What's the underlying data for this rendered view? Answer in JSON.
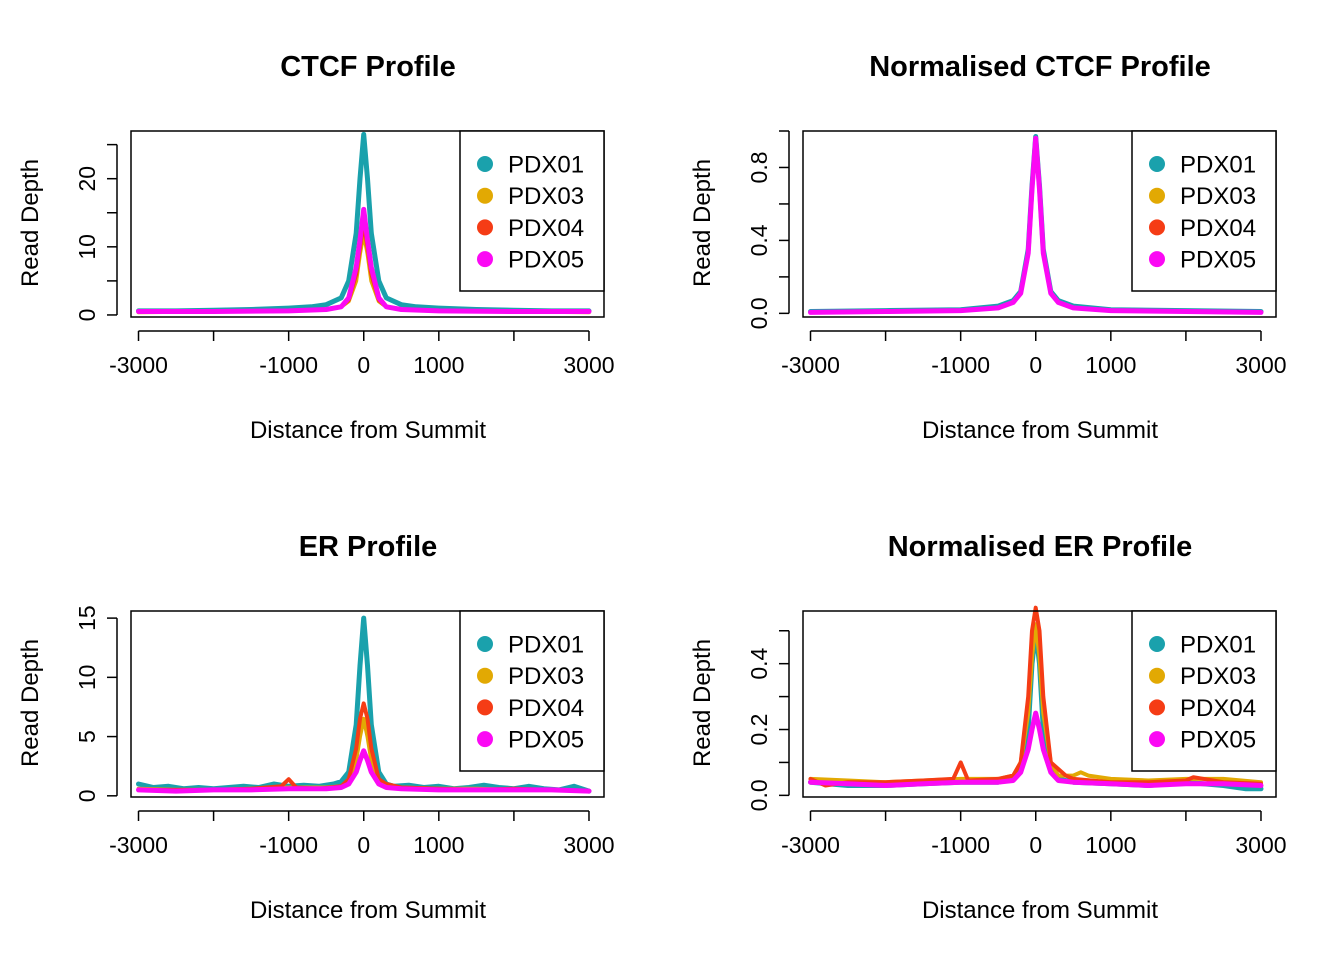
{
  "colors": {
    "PDX01": "#1AA1AC",
    "PDX03": "#E2A903",
    "PDX04": "#F53C15",
    "PDX05": "#FB09F4"
  },
  "chart_data": [
    {
      "type": "line",
      "title": "CTCF Profile",
      "xlabel": "Distance from Summit",
      "ylabel": "Read Depth",
      "xlim": [
        -3100,
        3200
      ],
      "ylim": [
        -0.3,
        27
      ],
      "xticks": [
        -3000,
        -2000,
        -1000,
        0,
        1000,
        2000,
        3000
      ],
      "xtick_labels": [
        "-3000",
        "",
        "-1000",
        "0",
        "1000",
        "",
        "3000"
      ],
      "yticks": [
        0,
        5,
        10,
        15,
        20,
        25
      ],
      "ytick_labels": [
        "0",
        "",
        "10",
        "",
        "20",
        ""
      ],
      "legend": [
        "PDX01",
        "PDX03",
        "PDX04",
        "PDX05"
      ],
      "legend_position": "top-right",
      "series": [
        {
          "name": "PDX01",
          "width": 5,
          "x": [
            -3000,
            -2500,
            -2000,
            -1500,
            -1000,
            -700,
            -500,
            -300,
            -200,
            -100,
            -50,
            0,
            50,
            100,
            200,
            300,
            500,
            700,
            1000,
            1500,
            2000,
            2500,
            3000
          ],
          "y": [
            0.6,
            0.6,
            0.7,
            0.8,
            1.0,
            1.2,
            1.5,
            2.5,
            5,
            12,
            20,
            26.5,
            20,
            12,
            5,
            2.5,
            1.5,
            1.2,
            1.0,
            0.8,
            0.7,
            0.6,
            0.6
          ]
        },
        {
          "name": "PDX03",
          "width": 4,
          "x": [
            -3000,
            -2000,
            -1000,
            -500,
            -300,
            -200,
            -100,
            -50,
            0,
            50,
            100,
            200,
            300,
            500,
            1000,
            2000,
            3000
          ],
          "y": [
            0.4,
            0.5,
            0.6,
            0.8,
            1.2,
            2,
            5,
            9,
            12,
            9,
            5,
            2,
            1.2,
            0.8,
            0.6,
            0.5,
            0.4
          ]
        },
        {
          "name": "PDX04",
          "width": 4,
          "x": [
            -3000,
            -2000,
            -1000,
            -500,
            -300,
            -200,
            -100,
            -50,
            0,
            50,
            100,
            200,
            300,
            500,
            1000,
            2000,
            3000
          ],
          "y": [
            0.5,
            0.5,
            0.6,
            0.8,
            1.2,
            2.2,
            6,
            10,
            13.5,
            10,
            6,
            2.2,
            1.2,
            0.8,
            0.6,
            0.5,
            0.5
          ]
        },
        {
          "name": "PDX05",
          "width": 5,
          "x": [
            -3000,
            -2000,
            -1000,
            -500,
            -300,
            -200,
            -100,
            -50,
            0,
            50,
            100,
            200,
            300,
            500,
            1000,
            2000,
            3000
          ],
          "y": [
            0.5,
            0.5,
            0.6,
            0.8,
            1.2,
            2.5,
            7,
            11,
            15.5,
            11,
            7,
            2.5,
            1.2,
            0.8,
            0.6,
            0.5,
            0.5
          ]
        }
      ]
    },
    {
      "type": "line",
      "title": "Normalised CTCF Profile",
      "xlabel": "Distance from Summit",
      "ylabel": "Read Depth",
      "xlim": [
        -3100,
        3200
      ],
      "ylim": [
        -0.02,
        1.0
      ],
      "xticks": [
        -3000,
        -2000,
        -1000,
        0,
        1000,
        2000,
        3000
      ],
      "xtick_labels": [
        "-3000",
        "",
        "-1000",
        "0",
        "1000",
        "",
        "3000"
      ],
      "yticks": [
        0,
        0.2,
        0.4,
        0.6,
        0.8,
        1.0
      ],
      "ytick_labels": [
        "0.0",
        "",
        "0.4",
        "",
        "0.8",
        ""
      ],
      "legend": [
        "PDX01",
        "PDX03",
        "PDX04",
        "PDX05"
      ],
      "legend_position": "top-right",
      "series": [
        {
          "name": "PDX01",
          "width": 5,
          "x": [
            -3000,
            -2000,
            -1000,
            -500,
            -300,
            -200,
            -100,
            -50,
            0,
            50,
            100,
            200,
            300,
            500,
            1000,
            2000,
            3000
          ],
          "y": [
            0.01,
            0.015,
            0.02,
            0.04,
            0.07,
            0.12,
            0.35,
            0.7,
            0.97,
            0.7,
            0.35,
            0.12,
            0.07,
            0.04,
            0.02,
            0.015,
            0.01
          ]
        },
        {
          "name": "PDX03",
          "width": 4,
          "x": [
            -3000,
            -2000,
            -1000,
            -500,
            -300,
            -200,
            -100,
            -50,
            0,
            50,
            100,
            200,
            300,
            500,
            1000,
            2000,
            3000
          ],
          "y": [
            0.005,
            0.01,
            0.015,
            0.03,
            0.06,
            0.11,
            0.33,
            0.68,
            0.95,
            0.68,
            0.33,
            0.11,
            0.06,
            0.03,
            0.015,
            0.01,
            0.005
          ]
        },
        {
          "name": "PDX04",
          "width": 4,
          "x": [
            -3000,
            -2000,
            -1000,
            -500,
            -300,
            -200,
            -100,
            -50,
            0,
            50,
            100,
            200,
            300,
            500,
            1000,
            2000,
            3000
          ],
          "y": [
            0.005,
            0.01,
            0.015,
            0.03,
            0.06,
            0.11,
            0.33,
            0.68,
            0.95,
            0.68,
            0.33,
            0.11,
            0.06,
            0.03,
            0.015,
            0.01,
            0.005
          ]
        },
        {
          "name": "PDX05",
          "width": 5,
          "x": [
            -3000,
            -2000,
            -1000,
            -500,
            -300,
            -200,
            -100,
            -50,
            0,
            50,
            100,
            200,
            300,
            500,
            1000,
            2000,
            3000
          ],
          "y": [
            0.005,
            0.01,
            0.015,
            0.03,
            0.06,
            0.11,
            0.33,
            0.68,
            0.96,
            0.68,
            0.33,
            0.11,
            0.06,
            0.03,
            0.015,
            0.01,
            0.005
          ]
        }
      ]
    },
    {
      "type": "line",
      "title": "ER Profile",
      "xlabel": "Distance from Summit",
      "ylabel": "Read Depth",
      "xlim": [
        -3100,
        3200
      ],
      "ylim": [
        -0.1,
        15.6
      ],
      "xticks": [
        -3000,
        -2000,
        -1000,
        0,
        1000,
        2000,
        3000
      ],
      "xtick_labels": [
        "-3000",
        "",
        "-1000",
        "0",
        "1000",
        "",
        "3000"
      ],
      "yticks": [
        0,
        5,
        10,
        15
      ],
      "ytick_labels": [
        "0",
        "5",
        "10",
        "15"
      ],
      "legend": [
        "PDX01",
        "PDX03",
        "PDX04",
        "PDX05"
      ],
      "legend_position": "top-right",
      "series": [
        {
          "name": "PDX01",
          "width": 5,
          "x": [
            -3000,
            -2800,
            -2600,
            -2400,
            -2200,
            -2000,
            -1800,
            -1600,
            -1400,
            -1200,
            -1000,
            -800,
            -600,
            -400,
            -300,
            -200,
            -100,
            -50,
            0,
            50,
            100,
            200,
            300,
            400,
            600,
            800,
            1000,
            1200,
            1400,
            1600,
            1800,
            2000,
            2200,
            2400,
            2600,
            2800,
            3000
          ],
          "y": [
            1.0,
            0.7,
            0.8,
            0.6,
            0.7,
            0.6,
            0.7,
            0.8,
            0.7,
            1.0,
            0.8,
            0.9,
            0.8,
            1.0,
            1.2,
            2.0,
            6.0,
            11.0,
            15.0,
            11.0,
            6.0,
            2.0,
            1.0,
            0.8,
            0.9,
            0.7,
            0.8,
            0.6,
            0.7,
            0.9,
            0.7,
            0.6,
            0.8,
            0.6,
            0.5,
            0.8,
            0.4
          ]
        },
        {
          "name": "PDX03",
          "width": 4,
          "x": [
            -3000,
            -2500,
            -2000,
            -1500,
            -1000,
            -500,
            -300,
            -200,
            -100,
            -50,
            0,
            50,
            100,
            200,
            300,
            500,
            1000,
            1500,
            2000,
            2500,
            3000
          ],
          "y": [
            0.6,
            0.5,
            0.5,
            0.6,
            0.7,
            0.7,
            0.8,
            1.2,
            3.0,
            5.0,
            6.5,
            5.0,
            3.0,
            1.2,
            0.8,
            0.7,
            0.6,
            0.6,
            0.5,
            0.5,
            0.4
          ]
        },
        {
          "name": "PDX04",
          "width": 4,
          "x": [
            -3000,
            -2500,
            -2000,
            -1500,
            -1100,
            -1000,
            -900,
            -600,
            -300,
            -200,
            -100,
            -50,
            0,
            50,
            100,
            200,
            300,
            500,
            1000,
            1500,
            2000,
            2500,
            3000
          ],
          "y": [
            0.5,
            0.5,
            0.5,
            0.6,
            0.8,
            1.4,
            0.7,
            0.6,
            0.8,
            1.4,
            4.0,
            6.5,
            7.8,
            6.5,
            4.0,
            1.4,
            1.0,
            0.7,
            0.6,
            0.5,
            0.6,
            0.5,
            0.4
          ]
        },
        {
          "name": "PDX05",
          "width": 5,
          "x": [
            -3000,
            -2500,
            -2000,
            -1500,
            -1000,
            -500,
            -300,
            -200,
            -100,
            -50,
            0,
            50,
            100,
            200,
            300,
            500,
            1000,
            1500,
            2000,
            2500,
            3000
          ],
          "y": [
            0.5,
            0.4,
            0.5,
            0.5,
            0.6,
            0.6,
            0.7,
            1.0,
            2.0,
            3.0,
            3.8,
            3.0,
            2.0,
            1.0,
            0.7,
            0.6,
            0.5,
            0.5,
            0.5,
            0.5,
            0.4
          ]
        }
      ]
    },
    {
      "type": "line",
      "title": "Normalised ER Profile",
      "xlabel": "Distance from Summit",
      "ylabel": "Read Depth",
      "xlim": [
        -3100,
        3200
      ],
      "ylim": [
        -0.005,
        0.56
      ],
      "xticks": [
        -3000,
        -2000,
        -1000,
        0,
        1000,
        2000,
        3000
      ],
      "xtick_labels": [
        "-3000",
        "",
        "-1000",
        "0",
        "1000",
        "",
        "3000"
      ],
      "yticks": [
        0,
        0.1,
        0.2,
        0.3,
        0.4,
        0.5
      ],
      "ytick_labels": [
        "0.0",
        "",
        "0.2",
        "",
        "0.4",
        ""
      ],
      "legend": [
        "PDX01",
        "PDX03",
        "PDX04",
        "PDX05"
      ],
      "legend_position": "top-right",
      "series": [
        {
          "name": "PDX01",
          "width": 5,
          "x": [
            -3000,
            -2500,
            -2000,
            -1500,
            -1000,
            -500,
            -300,
            -200,
            -100,
            -50,
            0,
            50,
            100,
            200,
            300,
            500,
            1000,
            1500,
            2000,
            2500,
            2800,
            3000
          ],
          "y": [
            0.04,
            0.03,
            0.03,
            0.035,
            0.04,
            0.04,
            0.05,
            0.08,
            0.2,
            0.4,
            0.5,
            0.4,
            0.2,
            0.08,
            0.05,
            0.04,
            0.035,
            0.03,
            0.04,
            0.03,
            0.02,
            0.02
          ]
        },
        {
          "name": "PDX03",
          "width": 4,
          "x": [
            -3000,
            -2500,
            -2000,
            -1500,
            -1000,
            -500,
            -300,
            -200,
            -100,
            -50,
            0,
            50,
            100,
            200,
            300,
            500,
            600,
            700,
            1000,
            1500,
            2000,
            2500,
            3000
          ],
          "y": [
            0.05,
            0.045,
            0.04,
            0.045,
            0.05,
            0.05,
            0.06,
            0.1,
            0.25,
            0.42,
            0.52,
            0.42,
            0.25,
            0.1,
            0.06,
            0.06,
            0.07,
            0.06,
            0.05,
            0.045,
            0.05,
            0.05,
            0.04
          ]
        },
        {
          "name": "PDX04",
          "width": 4,
          "x": [
            -3000,
            -2800,
            -2500,
            -2000,
            -1500,
            -1100,
            -1000,
            -900,
            -500,
            -300,
            -200,
            -100,
            -50,
            0,
            50,
            100,
            200,
            300,
            400,
            500,
            1000,
            1500,
            2000,
            2100,
            2500,
            3000
          ],
          "y": [
            0.05,
            0.03,
            0.04,
            0.04,
            0.045,
            0.05,
            0.1,
            0.045,
            0.05,
            0.06,
            0.1,
            0.3,
            0.5,
            0.57,
            0.5,
            0.3,
            0.1,
            0.08,
            0.06,
            0.05,
            0.04,
            0.04,
            0.045,
            0.055,
            0.04,
            0.035
          ]
        },
        {
          "name": "PDX05",
          "width": 5,
          "x": [
            -3000,
            -2500,
            -2000,
            -1500,
            -1000,
            -500,
            -300,
            -200,
            -100,
            -50,
            0,
            50,
            100,
            200,
            300,
            500,
            1000,
            1500,
            2000,
            2500,
            3000
          ],
          "y": [
            0.04,
            0.035,
            0.03,
            0.035,
            0.04,
            0.04,
            0.045,
            0.07,
            0.14,
            0.2,
            0.25,
            0.2,
            0.14,
            0.07,
            0.045,
            0.04,
            0.035,
            0.03,
            0.035,
            0.035,
            0.03
          ]
        }
      ]
    }
  ]
}
